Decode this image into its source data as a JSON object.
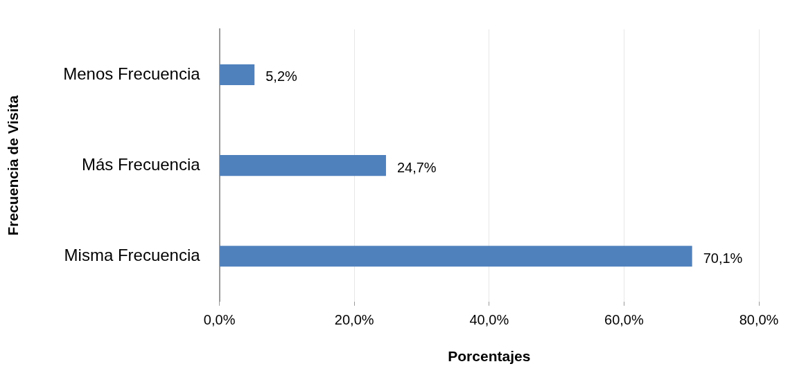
{
  "chart_data": {
    "type": "bar",
    "orientation": "horizontal",
    "xlabel": "Porcentajes",
    "ylabel": "Frecuencia de Visita",
    "categories": [
      "Menos Frecuencia",
      "Más Frecuencia",
      "Misma Frecuencia"
    ],
    "values": [
      5.2,
      24.7,
      70.1
    ],
    "color": "#4f81bd",
    "value_labels": [
      "5,2%",
      "24,7%",
      "70,1%"
    ],
    "xlim": [
      0,
      80
    ],
    "xticks": [
      {
        "value": 0,
        "label": "0,0%"
      },
      {
        "value": 20,
        "label": "20,0%"
      },
      {
        "value": 40,
        "label": "40,0%"
      },
      {
        "value": 60,
        "label": "60,0%"
      },
      {
        "value": 80,
        "label": "80,0%"
      }
    ],
    "grid": "x",
    "legend": false
  }
}
